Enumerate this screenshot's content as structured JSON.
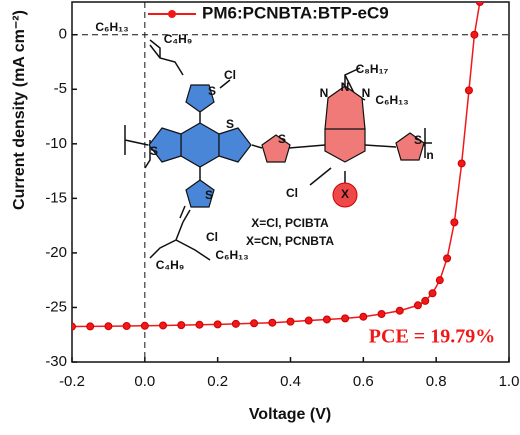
{
  "chart_data": {
    "type": "line",
    "x_label": "Voltage (V)",
    "y_label": "Current density (mA cm⁻²)",
    "xlim": [
      -0.2,
      1.0
    ],
    "ylim": [
      -30,
      3
    ],
    "xticks": [
      -0.2,
      {
        "value": 0,
        "label": "0.0"
      },
      0.2,
      0.4,
      0.6,
      0.8,
      {
        "value": 1,
        "label": "1.0"
      }
    ],
    "yticks": [
      0,
      -5,
      -10,
      -15,
      -20,
      -25,
      -30
    ],
    "legend": "top",
    "x": [
      -0.2,
      -0.15,
      -0.1,
      -0.05,
      0,
      0.05,
      0.1,
      0.15,
      0.2,
      0.25,
      0.3,
      0.35,
      0.4,
      0.45,
      0.5,
      0.55,
      0.6,
      0.65,
      0.7,
      0.75,
      0.77,
      0.79,
      0.81,
      0.83,
      0.85,
      0.87,
      0.89,
      0.905,
      0.92
    ],
    "series": [
      {
        "name": "PM6:PCNBTA:BTP-eC9",
        "color": "#f01818",
        "values": [
          -26.75,
          -26.74,
          -26.72,
          -26.7,
          -26.68,
          -26.65,
          -26.62,
          -26.58,
          -26.55,
          -26.5,
          -26.45,
          -26.4,
          -26.3,
          -26.2,
          -26.1,
          -26.0,
          -25.85,
          -25.6,
          -25.3,
          -24.8,
          -24.4,
          -23.7,
          -22.5,
          -20.5,
          -17.2,
          -11.8,
          -5.1,
          0,
          3
        ]
      }
    ],
    "annotation": "PCE  = 19.79%",
    "inset": {
      "labels": [
        "C₆H₁₃",
        "C₄H₉",
        "Cl",
        "S",
        "S",
        "S",
        "S",
        "S",
        "S",
        "N",
        "N",
        "N",
        "C₈H₁₇",
        "C₆H₁₃",
        "Cl",
        "X",
        "n",
        "Cl",
        "C₄H₉",
        "C₆H₁₃",
        "X=Cl,  PCIBTA",
        "X=CN, PCNBTA"
      ]
    }
  }
}
